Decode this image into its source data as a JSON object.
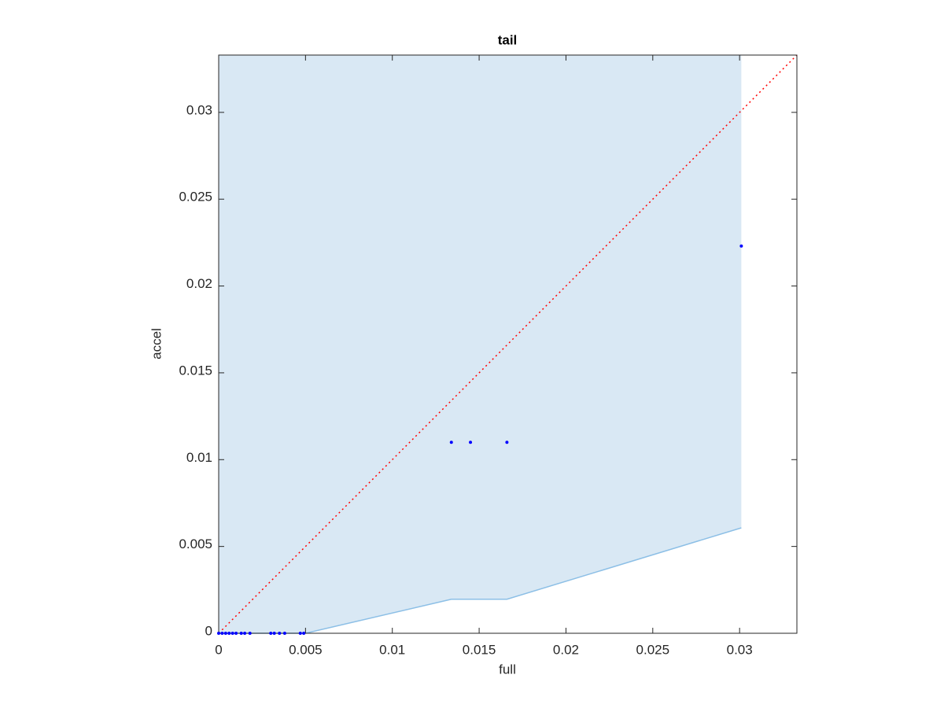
{
  "chart_data": {
    "type": "scatter",
    "title": "tail",
    "x_label": "full",
    "y_label": "accel",
    "xlim": [
      0,
      0.0333
    ],
    "ylim": [
      0,
      0.0333
    ],
    "xticks": [
      0,
      0.005,
      0.01,
      0.015,
      0.02,
      0.025,
      0.03
    ],
    "yticks": [
      0,
      0.005,
      0.01,
      0.015,
      0.02,
      0.025,
      0.03
    ],
    "fill": {
      "color": "#d9e8f4",
      "edge_color": "#8cbfe6",
      "x": [
        0,
        0.005,
        0.0134,
        0.0166,
        0.0301
      ],
      "lower": [
        0,
        0,
        0.00196,
        0.00196,
        0.00607
      ],
      "upper": [
        0.0333,
        0.0333,
        0.0333,
        0.0333,
        0.0333
      ]
    },
    "line": {
      "color": "#ff0000",
      "x": [
        0,
        0.0333
      ],
      "values": [
        0,
        0.0333
      ]
    },
    "points": {
      "color": "#0000ff",
      "x": [
        0,
        0.0002,
        0.0004,
        0.0006,
        0.0008,
        0.001,
        0.0013,
        0.0015,
        0.0018,
        0.003,
        0.0032,
        0.0035,
        0.0038,
        0.0047,
        0.0049,
        0.0134,
        0.0145,
        0.0166,
        0.0301
      ],
      "values": [
        0,
        0,
        0,
        0,
        0,
        0,
        0,
        0,
        0,
        0,
        0,
        0,
        0,
        0,
        0,
        0.011,
        0.011,
        0.011,
        0.0223
      ]
    }
  }
}
